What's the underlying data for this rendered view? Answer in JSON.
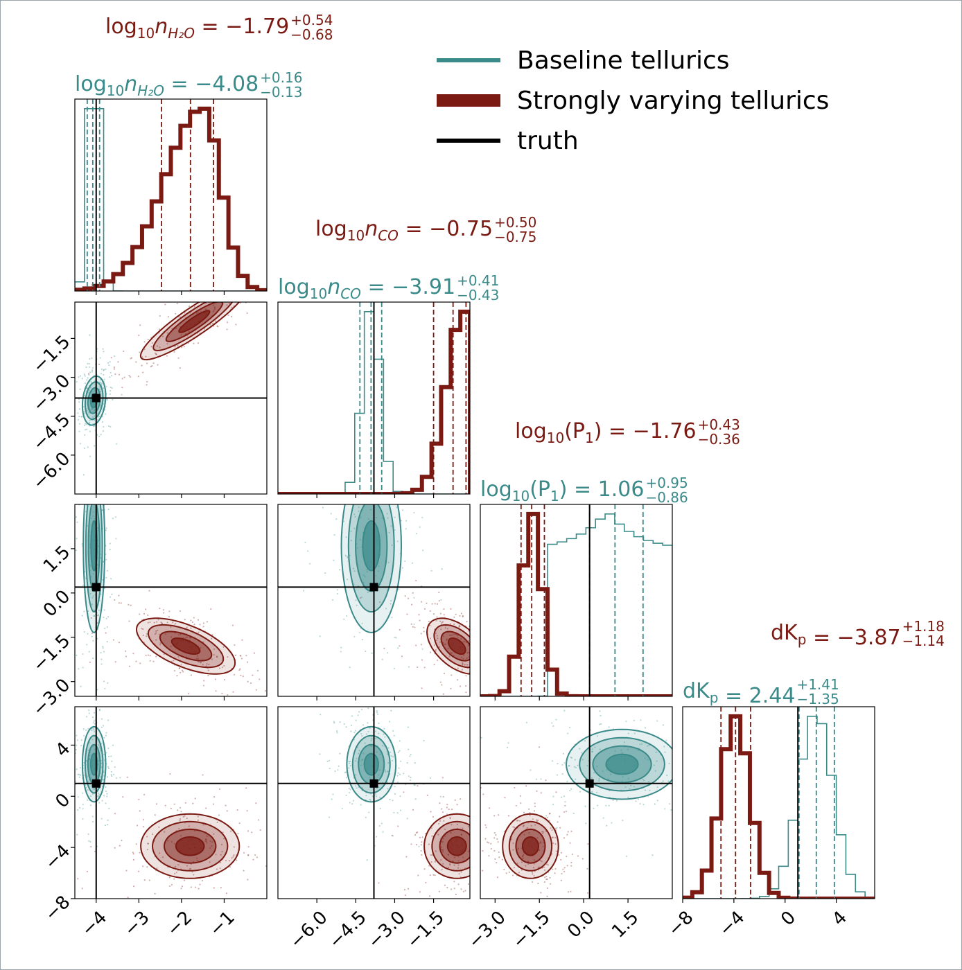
{
  "chart_data": {
    "type": "corner",
    "parameters": [
      "log10_nH2O",
      "log10_nCO",
      "log10_P1",
      "dKp"
    ],
    "truth": {
      "log10_nH2O": -4.0,
      "log10_nCO": -3.8,
      "log10_P1": 0.2,
      "dKp": 1.0
    },
    "axis_ranges": {
      "log10_nH2O": [
        -4.5,
        0.0
      ],
      "log10_nCO": [
        -7.5,
        -0.1
      ],
      "log10_P1": [
        -3.5,
        3.0
      ],
      "dKp": [
        -8.0,
        7.0
      ]
    },
    "tick_labels": {
      "log10_nH2O": [
        "−4",
        "−3",
        "−2",
        "−1"
      ],
      "log10_nCO": [
        "−6.0",
        "−4.5",
        "−3.0",
        "−1.5"
      ],
      "log10_P1": [
        "−3.0",
        "−1.5",
        "0.0",
        "1.5"
      ],
      "dKp": [
        "−8",
        "−4",
        "0",
        "4"
      ]
    },
    "series": [
      {
        "name": "Baseline tellurics",
        "color": "#3a8a8a",
        "summaries": {
          "log10_nH2O": {
            "median": -4.08,
            "plus": 0.16,
            "minus": 0.13
          },
          "log10_nCO": {
            "median": -3.91,
            "plus": 0.41,
            "minus": 0.43
          },
          "log10_P1": {
            "median": 1.06,
            "plus": 0.95,
            "minus": 0.86
          },
          "dKp": {
            "median": 2.44,
            "plus": 1.41,
            "minus": 1.35
          }
        }
      },
      {
        "name": "Strongly varying tellurics",
        "color": "#7a1a12",
        "summaries": {
          "log10_nH2O": {
            "median": -1.79,
            "plus": 0.54,
            "minus": 0.68
          },
          "log10_nCO": {
            "median": -0.75,
            "plus": 0.5,
            "minus": 0.75
          },
          "log10_P1": {
            "median": -1.76,
            "plus": 0.43,
            "minus": 0.36
          },
          "dKp": {
            "median": -3.87,
            "plus": 1.18,
            "minus": 1.14
          }
        }
      }
    ],
    "truth_label": "truth",
    "legend": {
      "placement": "top-right",
      "entries": [
        "Baseline tellurics",
        "Strongly varying tellurics",
        "truth"
      ]
    }
  },
  "titles": {
    "red": {
      "nH2O": {
        "prefix": "log",
        "sub": "10",
        "var": "n",
        "varsub": "H₂O",
        "eq": " = −1.79",
        "plus": "+0.54",
        "minus": "−0.68"
      },
      "nCO": {
        "prefix": "log",
        "sub": "10",
        "var": "n",
        "varsub": "CO",
        "eq": " = −0.75",
        "plus": "+0.50",
        "minus": "−0.75"
      },
      "P1": {
        "prefix": "log",
        "sub": "10",
        "var": "(P",
        "varsub": "1",
        "eq": ") = −1.76",
        "plus": "+0.43",
        "minus": "−0.36"
      },
      "dKp": {
        "prefix": "dK",
        "sub": "p",
        "var": "",
        "varsub": "",
        "eq": " = −3.87",
        "plus": "+1.18",
        "minus": "−1.14"
      }
    },
    "teal": {
      "nH2O": {
        "prefix": "log",
        "sub": "10",
        "var": "n",
        "varsub": "H₂O",
        "eq": " = −4.08",
        "plus": "+0.16",
        "minus": "−0.13"
      },
      "nCO": {
        "prefix": "log",
        "sub": "10",
        "var": "n",
        "varsub": "CO",
        "eq": " = −3.91",
        "plus": "+0.41",
        "minus": "−0.43"
      },
      "P1": {
        "prefix": "log",
        "sub": "10",
        "var": "(P",
        "varsub": "1",
        "eq": ") = 1.06",
        "plus": "+0.95",
        "minus": "−0.86"
      },
      "dKp": {
        "prefix": "dK",
        "sub": "p",
        "var": "",
        "varsub": "",
        "eq": " = 2.44",
        "plus": "+1.41",
        "minus": "−1.35"
      }
    }
  }
}
